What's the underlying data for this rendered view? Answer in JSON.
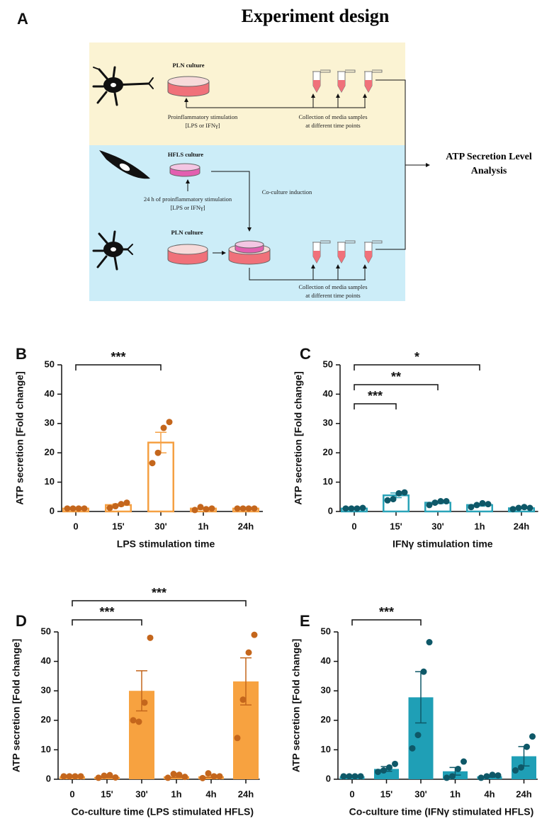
{
  "figure": {
    "panel": "A",
    "title": "Experiment design"
  },
  "diagram": {
    "top": {
      "culture": "PLN culture",
      "stimulation": [
        "Proinflammatory stimulation",
        "[LPS or IFNγ]"
      ],
      "collection": [
        "Collection of media samples",
        "at different time points"
      ]
    },
    "bottom": {
      "hfls": "HFLS culture",
      "stimulation": [
        "24 h of proinflammatory stimulation",
        "[LPS or IFNγ]"
      ],
      "coculture": "Co-culture induction",
      "culture": "PLN culture",
      "collection": [
        "Collection of media samples",
        "at different time points"
      ]
    },
    "output": [
      "ATP Secretion Level",
      "Analysis"
    ]
  },
  "chart_data": [
    {
      "type": "bar",
      "panel": "B",
      "ylabel": "ATP secretion [Fold change]",
      "xlabel": "LPS stimulation time",
      "categories": [
        "0",
        "15'",
        "30'",
        "1h",
        "24h"
      ],
      "values": [
        1,
        2.2,
        23.5,
        1,
        1
      ],
      "errors": [
        0.1,
        0.4,
        3.5,
        0.3,
        0.1
      ],
      "points": [
        [
          1,
          1,
          1,
          1
        ],
        [
          1.2,
          1.8,
          2.5,
          3
        ],
        [
          16.5,
          20,
          28.5,
          30.5
        ],
        [
          0.5,
          1.5,
          0.8,
          1
        ],
        [
          1,
          1,
          1,
          1
        ]
      ],
      "color": "#f5a043",
      "point_color": "#c4661c",
      "filled": false,
      "ylim": [
        0,
        50
      ],
      "yticks": [
        0,
        10,
        20,
        30,
        40,
        50
      ],
      "significance": [
        {
          "between": [
            "0",
            "30'"
          ],
          "label": "***"
        }
      ]
    },
    {
      "type": "bar",
      "panel": "C",
      "ylabel": "ATP secretion [Fold change]",
      "xlabel": "IFNγ stimulation time",
      "categories": [
        "0",
        "15'",
        "30'",
        "1h",
        "24h"
      ],
      "values": [
        1,
        5.5,
        3,
        2.2,
        1.1
      ],
      "errors": [
        0.1,
        0.8,
        0.3,
        0.4,
        0.2
      ],
      "points": [
        [
          1,
          1,
          1,
          1.2
        ],
        [
          3.8,
          4.2,
          6.2,
          6.5
        ],
        [
          2.2,
          3,
          3.5,
          3.5
        ],
        [
          1.5,
          2.2,
          2.8,
          2.5
        ],
        [
          0.8,
          1.2,
          1.5,
          1.2
        ]
      ],
      "color": "#2aa3b8",
      "point_color": "#0e5868",
      "filled": false,
      "ylim": [
        0,
        50
      ],
      "yticks": [
        0,
        10,
        20,
        30,
        40,
        50
      ],
      "significance": [
        {
          "between": [
            "0",
            "15'"
          ],
          "label": "***"
        },
        {
          "between": [
            "0",
            "30'"
          ],
          "label": "**"
        },
        {
          "between": [
            "0",
            "1h"
          ],
          "label": "*"
        }
      ]
    },
    {
      "type": "bar",
      "panel": "D",
      "ylabel": "ATP secretion [Fold change]",
      "xlabel": "Co-culture time (LPS stimulated HFLS)",
      "categories": [
        "0",
        "15'",
        "30'",
        "1h",
        "4h",
        "24h"
      ],
      "values": [
        1,
        0.8,
        30,
        1,
        1,
        33.2
      ],
      "errors": [
        0.1,
        0.3,
        6.8,
        0.4,
        0.4,
        8
      ],
      "points": [
        [
          1,
          1,
          1,
          1
        ],
        [
          0.5,
          1.2,
          1.4,
          0.6
        ],
        [
          20,
          19.5,
          26,
          48
        ],
        [
          0.5,
          1.8,
          1.5,
          0.8
        ],
        [
          0.4,
          2,
          1,
          1
        ],
        [
          14,
          27,
          43,
          49
        ]
      ],
      "color": "#f7a240",
      "point_color": "#c4661c",
      "filled": true,
      "ylim": [
        0,
        50
      ],
      "yticks": [
        0,
        10,
        20,
        30,
        40,
        50
      ],
      "significance": [
        {
          "between": [
            "0",
            "30'"
          ],
          "label": "***"
        },
        {
          "between": [
            "0",
            "24h"
          ],
          "label": "***"
        }
      ]
    },
    {
      "type": "bar",
      "panel": "E",
      "ylabel": "ATP secretion [Fold change]",
      "xlabel": "Co-culture time (IFNγ stimulated HFLS)",
      "categories": [
        "0",
        "15'",
        "30'",
        "1h",
        "4h",
        "24h"
      ],
      "values": [
        1,
        3.5,
        27.8,
        2.7,
        1,
        7.8
      ],
      "errors": [
        0.1,
        0.8,
        8.7,
        1.3,
        0.3,
        3.3
      ],
      "points": [
        [
          1,
          1,
          1,
          1
        ],
        [
          2.5,
          3,
          4,
          5.2
        ],
        [
          10.5,
          15,
          36.5,
          46.5
        ],
        [
          0.5,
          1,
          3.5,
          6
        ],
        [
          0.5,
          1,
          1.5,
          1.3
        ],
        [
          3,
          4,
          11,
          14.5
        ]
      ],
      "color": "#1f9fb6",
      "point_color": "#0e5868",
      "filled": true,
      "ylim": [
        0,
        50
      ],
      "yticks": [
        0,
        10,
        20,
        30,
        40,
        50
      ],
      "significance": [
        {
          "between": [
            "0",
            "30'"
          ],
          "label": "***"
        }
      ]
    }
  ]
}
